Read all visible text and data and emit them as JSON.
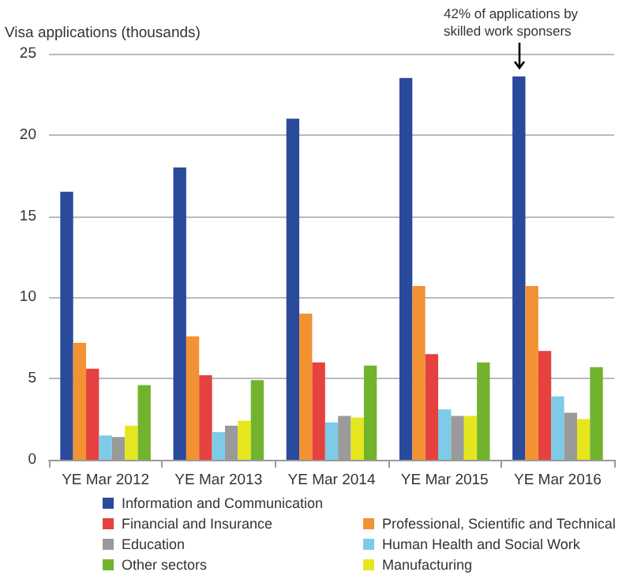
{
  "chart_data": {
    "type": "bar",
    "ylabel": "Visa applications (thousands)",
    "categories": [
      "YE Mar 2012",
      "YE Mar 2013",
      "YE Mar 2014",
      "YE Mar 2015",
      "YE Mar 2016"
    ],
    "series": [
      {
        "name": "Information and Communication",
        "color": "#2a4a9b",
        "values": [
          16.5,
          18.0,
          21.0,
          23.5,
          23.6
        ]
      },
      {
        "name": "Professional, Scientific and Technical",
        "color": "#f39233",
        "values": [
          7.2,
          7.6,
          9.0,
          10.7,
          10.7
        ]
      },
      {
        "name": "Financial and Insurance",
        "color": "#e5413f",
        "values": [
          5.6,
          5.2,
          6.0,
          6.5,
          6.7
        ]
      },
      {
        "name": "Human Health and Social Work",
        "color": "#7dcbe6",
        "values": [
          1.5,
          1.7,
          2.3,
          3.1,
          3.9
        ]
      },
      {
        "name": "Education",
        "color": "#9a9a9a",
        "values": [
          1.4,
          2.1,
          2.7,
          2.7,
          2.9
        ]
      },
      {
        "name": "Manufacturing",
        "color": "#e6e61e",
        "values": [
          2.1,
          2.4,
          2.6,
          2.7,
          2.5
        ]
      },
      {
        "name": "Other sectors",
        "color": "#72b32e",
        "values": [
          4.6,
          4.9,
          5.8,
          6.0,
          5.7
        ]
      }
    ],
    "annotations": [
      "42% of applications by skilled work sponsers"
    ],
    "ylim": [
      0,
      25
    ],
    "yticks": [
      0,
      5,
      10,
      15,
      20,
      25
    ],
    "grid": "y",
    "legend": "bottom"
  }
}
